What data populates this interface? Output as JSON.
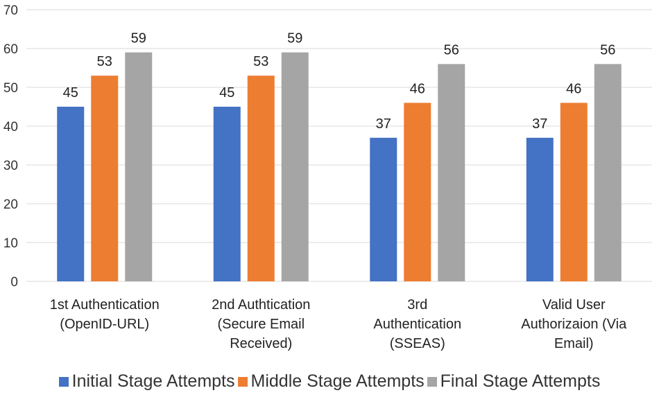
{
  "chart_data": {
    "type": "bar",
    "title": "",
    "xlabel": "",
    "ylabel": "",
    "ylim": [
      0,
      70
    ],
    "yticks": [
      0,
      10,
      20,
      30,
      40,
      50,
      60,
      70
    ],
    "grid": true,
    "legend_position": "bottom",
    "categories": [
      [
        "1st Authentication",
        "(OpenID-URL)"
      ],
      [
        "2nd Authtication",
        "(Secure Email",
        "Received)"
      ],
      [
        "3rd",
        "Authentication",
        "(SSEAS)"
      ],
      [
        "Valid User",
        "Authorizaion (Via",
        "Email)"
      ]
    ],
    "series": [
      {
        "name": "Initial Stage Attempts",
        "color": "#4472c4",
        "values": [
          45,
          45,
          37,
          37
        ]
      },
      {
        "name": "Middle Stage Attempts",
        "color": "#ed7d31",
        "values": [
          53,
          53,
          46,
          46
        ]
      },
      {
        "name": "Final Stage Attempts",
        "color": "#a5a5a5",
        "values": [
          59,
          59,
          56,
          56
        ]
      }
    ]
  }
}
